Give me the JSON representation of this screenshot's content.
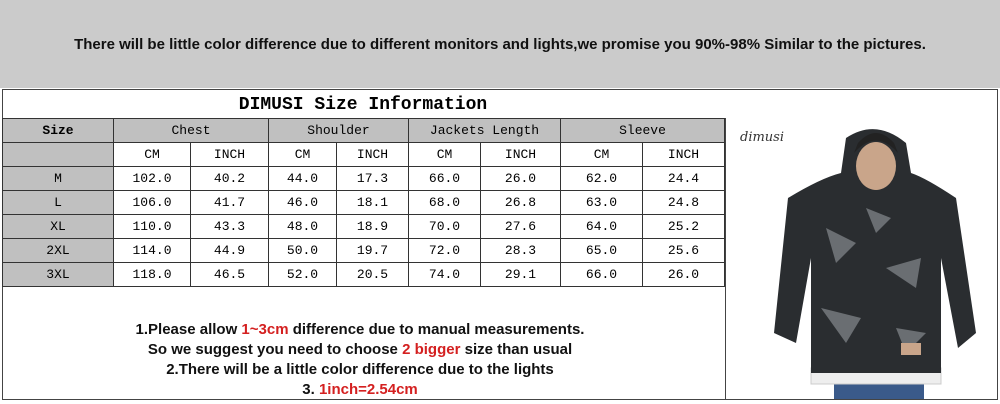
{
  "banner": "There will be little color difference due to different monitors and lights,we promise you 90%-98%  Similar to the pictures.",
  "title": "DIMUSI  Size Information",
  "table": {
    "size_header": "Size",
    "groups": [
      "Chest",
      "Shoulder",
      "Jackets Length",
      "Sleeve"
    ],
    "units": [
      "CM",
      "INCH",
      "CM",
      "INCH",
      "CM",
      "INCH",
      "CM",
      "INCH"
    ],
    "rows": [
      {
        "size": "M",
        "values": [
          "102.0",
          "40.2",
          "44.0",
          "17.3",
          "66.0",
          "26.0",
          "62.0",
          "24.4"
        ]
      },
      {
        "size": "L",
        "values": [
          "106.0",
          "41.7",
          "46.0",
          "18.1",
          "68.0",
          "26.8",
          "63.0",
          "24.8"
        ]
      },
      {
        "size": "XL",
        "values": [
          "110.0",
          "43.3",
          "48.0",
          "18.9",
          "70.0",
          "27.6",
          "64.0",
          "25.2"
        ]
      },
      {
        "size": "2XL",
        "values": [
          "114.0",
          "44.9",
          "50.0",
          "19.7",
          "72.0",
          "28.3",
          "65.0",
          "25.6"
        ]
      },
      {
        "size": "3XL",
        "values": [
          "118.0",
          "46.5",
          "52.0",
          "20.5",
          "74.0",
          "29.1",
          "66.0",
          "26.0"
        ]
      }
    ]
  },
  "notes": {
    "l1a": "1.Please allow ",
    "l1b": "1~3cm",
    "l1c": " difference due to manual measurements.",
    "l2a": "So we suggest you need to choose ",
    "l2b": "2 bigger",
    "l2c": " size than usual",
    "l3": "2.There will be a little color difference due to the lights",
    "l4a": "3. ",
    "l4b": "1inch=2.54cm"
  },
  "photo": {
    "logo": "dimusi"
  },
  "colors": {
    "header_gray": "#c0c0c0",
    "banner_gray": "#cbcbcb",
    "highlight_red": "#d42020"
  }
}
